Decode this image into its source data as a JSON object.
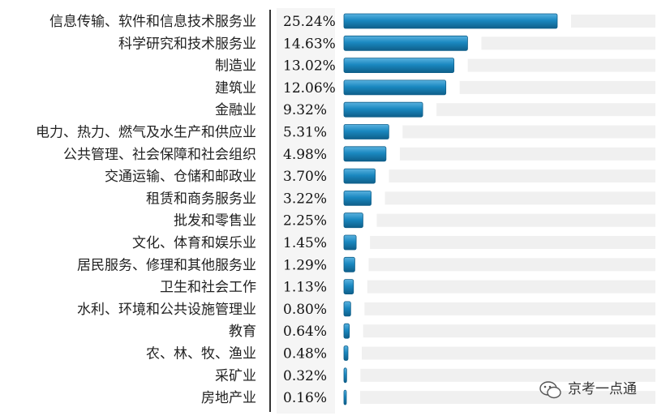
{
  "chart_data": {
    "type": "bar",
    "orientation": "horizontal",
    "categories": [
      "信息传输、软件和信息技术服务业",
      "科学研究和技术服务业",
      "制造业",
      "建筑业",
      "金融业",
      "电力、热力、燃气及水生产和供应业",
      "公共管理、社会保障和社会组织",
      "交通运输、仓储和邮政业",
      "租赁和商务服务业",
      "批发和零售业",
      "文化、体育和娱乐业",
      "居民服务、修理和其他服务业",
      "卫生和社会工作",
      "水利、环境和公共设施管理业",
      "教育",
      "农、林、牧、渔业",
      "采矿业",
      "房地产业"
    ],
    "values": [
      25.24,
      14.63,
      13.02,
      12.06,
      9.32,
      5.31,
      4.98,
      3.7,
      3.22,
      2.25,
      1.45,
      1.29,
      1.13,
      0.8,
      0.64,
      0.48,
      0.32,
      0.16
    ],
    "value_labels": [
      "25.24%",
      "14.63%",
      "13.02%",
      "12.06%",
      "9.32%",
      "5.31%",
      "4.98%",
      "3.70%",
      "3.22%",
      "2.25%",
      "1.45%",
      "1.29%",
      "1.13%",
      "0.80%",
      "0.64%",
      "0.48%",
      "0.32%",
      "0.16%"
    ],
    "xlim": [
      0,
      25.24
    ],
    "grid": false,
    "legend": "none",
    "colors": {
      "bar": "#1a88c0",
      "bar_dark": "#0f5f8a",
      "bar_light": "#5ab2df",
      "track": "#f0f0f0",
      "label_column": "#f5f5f5",
      "axis": "#333333"
    }
  },
  "watermark": {
    "text": "京考一点通",
    "icon": "wechat-icon"
  }
}
